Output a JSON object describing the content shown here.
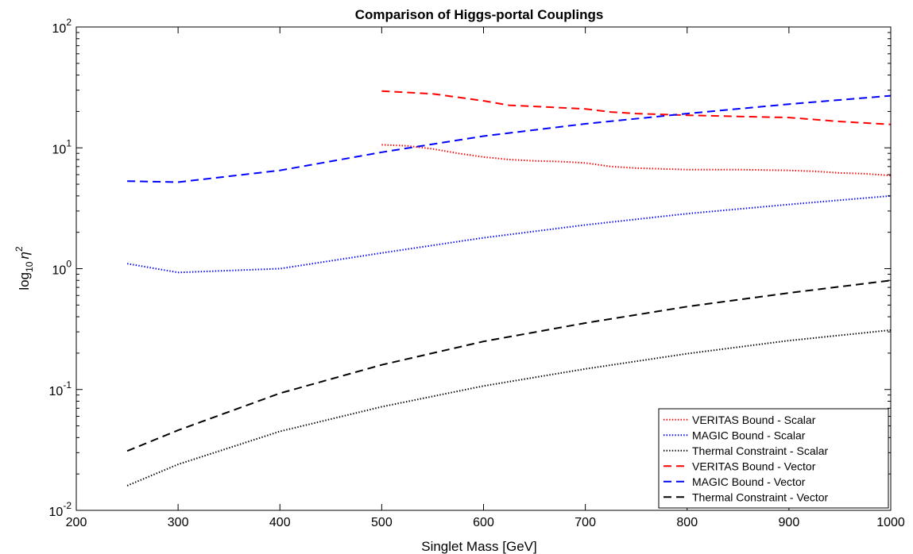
{
  "chart_data": {
    "type": "line",
    "title": "Comparison of Higgs-portal Couplings",
    "xlabel": "Singlet Mass [GeV]",
    "ylabel": {
      "base": "log",
      "sub": "10",
      "eta": "η",
      "sup": "2"
    },
    "xlim": [
      200,
      1000
    ],
    "ylim": [
      0.01,
      100
    ],
    "yscale": "log",
    "x_ticks": [
      200,
      300,
      400,
      500,
      600,
      700,
      800,
      900,
      1000
    ],
    "x_tick_labels": [
      "200",
      "300",
      "400",
      "500",
      "600",
      "700",
      "800",
      "900",
      "1000"
    ],
    "y_ticks": [
      {
        "value": 0.01,
        "base": "10",
        "exp": "-2"
      },
      {
        "value": 0.1,
        "base": "10",
        "exp": "-1"
      },
      {
        "value": 1,
        "base": "10",
        "exp": "0"
      },
      {
        "value": 10,
        "base": "10",
        "exp": "1"
      },
      {
        "value": 100,
        "base": "10",
        "exp": "2"
      }
    ],
    "grid": false,
    "legend_position": "bottom-right",
    "series": [
      {
        "name": "VERITAS Bound - Scalar",
        "color": "#ff0000",
        "dash": "dotted",
        "x": [
          500,
          525,
          550,
          575,
          600,
          625,
          650,
          675,
          700,
          725,
          750,
          800,
          850,
          900,
          925,
          950,
          975,
          1000
        ],
        "y": [
          10.6,
          10.4,
          9.8,
          9.0,
          8.4,
          8.0,
          7.8,
          7.7,
          7.5,
          7.0,
          6.8,
          6.6,
          6.6,
          6.5,
          6.4,
          6.2,
          6.1,
          5.9
        ]
      },
      {
        "name": "MAGIC Bound - Scalar",
        "color": "#0000ff",
        "dash": "dotted",
        "x": [
          250,
          300,
          400,
          500,
          600,
          700,
          800,
          900,
          1000
        ],
        "y": [
          1.1,
          0.93,
          1.0,
          1.35,
          1.8,
          2.3,
          2.85,
          3.4,
          4.0
        ]
      },
      {
        "name": "Thermal Constraint - Scalar",
        "color": "#000000",
        "dash": "dotted",
        "x": [
          250,
          300,
          400,
          500,
          600,
          700,
          800,
          900,
          1000
        ],
        "y": [
          0.016,
          0.024,
          0.045,
          0.072,
          0.107,
          0.148,
          0.198,
          0.254,
          0.31
        ]
      },
      {
        "name": "VERITAS Bound - Vector",
        "color": "#ff0000",
        "dash": "dashed",
        "x": [
          500,
          550,
          600,
          625,
          650,
          700,
          725,
          750,
          800,
          850,
          900,
          950,
          1000
        ],
        "y": [
          29.5,
          28.0,
          24.5,
          22.5,
          22.0,
          21.0,
          19.8,
          19.2,
          18.6,
          18.2,
          17.8,
          16.5,
          15.6
        ]
      },
      {
        "name": "MAGIC Bound - Vector",
        "color": "#0000ff",
        "dash": "dashed",
        "x": [
          250,
          300,
          400,
          500,
          600,
          700,
          800,
          900,
          1000
        ],
        "y": [
          5.3,
          5.2,
          6.5,
          9.2,
          12.5,
          15.8,
          19.2,
          23.0,
          27.0
        ]
      },
      {
        "name": "Thermal Constraint - Vector",
        "color": "#000000",
        "dash": "dashed",
        "x": [
          250,
          300,
          400,
          500,
          600,
          700,
          800,
          900,
          1000
        ],
        "y": [
          0.031,
          0.046,
          0.093,
          0.16,
          0.25,
          0.355,
          0.485,
          0.63,
          0.8
        ]
      }
    ]
  }
}
